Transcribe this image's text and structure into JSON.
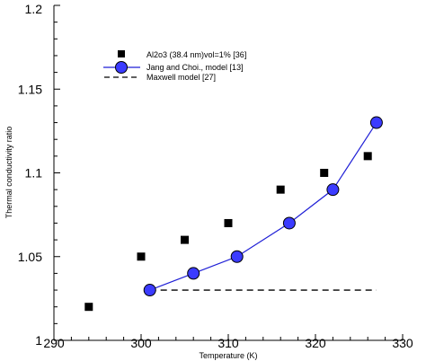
{
  "chart_data": {
    "type": "scatter",
    "title": "",
    "xlabel": "Temperature (K)",
    "ylabel": "Thermal conductivity ratio",
    "xlim": [
      290,
      330
    ],
    "ylim": [
      1.0,
      1.2
    ],
    "xticks": [
      290,
      300,
      310,
      320,
      330
    ],
    "yticks": [
      1.0,
      1.05,
      1.1,
      1.15,
      1.2
    ],
    "xtick_labels": [
      "290",
      "300",
      "310",
      "320",
      "330"
    ],
    "ytick_labels": [
      "1",
      "1.05",
      "1.1",
      "1.15",
      "1.2"
    ],
    "grid": false,
    "legend_position": "top-left",
    "series": [
      {
        "name": "Al2o3 (38.4 nm)vol=1% [36]",
        "style": "square-markers",
        "color": "#000000",
        "x": [
          294,
          300,
          305,
          310,
          316,
          321,
          326
        ],
        "y": [
          1.02,
          1.05,
          1.06,
          1.07,
          1.09,
          1.1,
          1.11
        ]
      },
      {
        "name": "Jang and Choi., model [13]",
        "style": "line-circle-markers",
        "color": "#1f1fd6",
        "marker_color": "#3b3bff",
        "x": [
          301,
          306,
          311,
          317,
          322,
          327
        ],
        "y": [
          1.03,
          1.04,
          1.05,
          1.07,
          1.09,
          1.13
        ]
      },
      {
        "name": "Maxwell model [27]",
        "style": "dashed-line",
        "color": "#000000",
        "x": [
          301,
          327
        ],
        "y": [
          1.03,
          1.03
        ]
      }
    ]
  }
}
